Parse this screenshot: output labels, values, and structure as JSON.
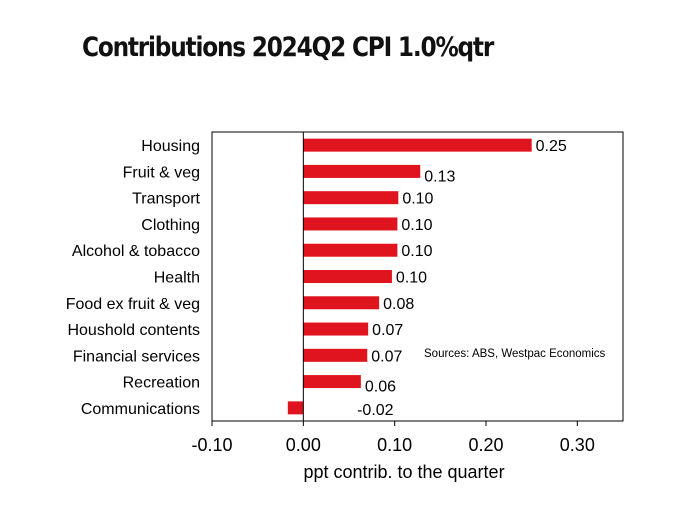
{
  "chart_data": {
    "type": "bar",
    "orientation": "horizontal",
    "title": "Contributions 2024Q2 CPI 1.0%qtr",
    "categories": [
      "Housing",
      "Fruit & veg",
      "Transport",
      "Clothing",
      "Alcohol & tobacco",
      "Health",
      "Food ex fruit & veg",
      "Houshold contents",
      "Financial services",
      "Recreation",
      "Communications"
    ],
    "values": [
      0.25,
      0.128,
      0.104,
      0.103,
      0.103,
      0.097,
      0.083,
      0.071,
      0.07,
      0.063,
      -0.017
    ],
    "data_labels": [
      "0.25",
      "0.13",
      "0.10",
      "0.10",
      "0.10",
      "0.10",
      "0.08",
      "0.07",
      "0.07",
      "0.06",
      "-0.02"
    ],
    "xlabel": "ppt contrib. to the quarter",
    "ylabel": "",
    "xlim": [
      -0.1,
      0.35
    ],
    "xticks": [
      -0.1,
      0,
      0.1,
      0.2,
      0.3
    ],
    "xtick_labels": [
      "-0.10",
      "0.00",
      "0.10",
      "0.20",
      "0.30"
    ],
    "annotation": "Sources: ABS, Westpac Economics",
    "bar_color": "#e0141e",
    "grid": false,
    "legend": "none"
  }
}
